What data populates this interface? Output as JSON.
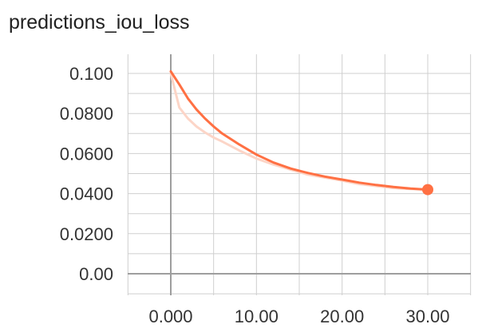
{
  "chart_data": {
    "type": "line",
    "title": "predictions_iou_loss",
    "xlabel": "",
    "ylabel": "",
    "xlim": [
      -5,
      35
    ],
    "ylim": [
      -0.01,
      0.11
    ],
    "x_ticks": [
      0,
      10,
      20,
      30
    ],
    "x_tick_labels": [
      "0.000",
      "10.00",
      "20.00",
      "30.00"
    ],
    "y_ticks": [
      0,
      0.02,
      0.04,
      0.06,
      0.08,
      0.1
    ],
    "y_tick_labels": [
      "0.00",
      "0.0200",
      "0.0400",
      "0.0600",
      "0.0800",
      "0.100"
    ],
    "grid": true,
    "legend": "none",
    "series": [
      {
        "role": "raw",
        "color": "#fcd5c7",
        "x": [
          0,
          1,
          2,
          3,
          4,
          5,
          6,
          8,
          10,
          12,
          14,
          16,
          18,
          20,
          22,
          24,
          26,
          28,
          30
        ],
        "y": [
          0.1,
          0.083,
          0.0775,
          0.0735,
          0.0705,
          0.068,
          0.066,
          0.0615,
          0.0575,
          0.0545,
          0.052,
          0.0495,
          0.048,
          0.0465,
          0.0448,
          0.0438,
          0.0428,
          0.0423,
          0.042
        ]
      },
      {
        "role": "smoothed",
        "color": "#ff7043",
        "x": [
          0,
          1,
          2,
          3,
          4,
          5,
          6,
          8,
          10,
          12,
          14,
          16,
          18,
          20,
          22,
          24,
          26,
          28,
          30
        ],
        "y": [
          0.101,
          0.0945,
          0.0875,
          0.082,
          0.0775,
          0.0735,
          0.07,
          0.0645,
          0.0595,
          0.0555,
          0.0525,
          0.0503,
          0.0485,
          0.047,
          0.0455,
          0.0443,
          0.0433,
          0.0425,
          0.042
        ]
      }
    ]
  }
}
